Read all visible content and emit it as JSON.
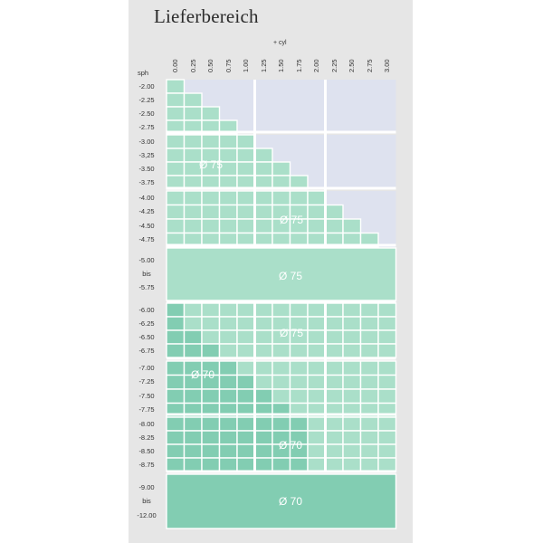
{
  "title": "Lieferbereich",
  "axis": {
    "cyl_label": "+ cyl",
    "sph_label": "sph"
  },
  "columns": [
    "0.00",
    "0.25",
    "0.50",
    "0.75",
    "1.00",
    "1.25",
    "1.50",
    "1.75",
    "2.00",
    "2.25",
    "2.50",
    "2.75",
    "3.00"
  ],
  "rows": [
    "-2.00",
    "-2.25",
    "-2.50",
    "-2.75",
    "-3.00",
    "-3,25",
    "-3.50",
    "-3.75",
    "-4.00",
    "-4.25",
    "-4.50",
    "-4.75",
    "-5.00",
    "bis",
    "-5.75",
    "-6.00",
    "-6.25",
    "-6.50",
    "-6.75",
    "-7.00",
    "-7.25",
    "-7.50",
    "-7.75",
    "-8.00",
    "-8.25",
    "-8.50",
    "-8.75",
    "-9.00",
    "bis",
    "-12.00"
  ],
  "regions": [
    {
      "label": "Ø 75"
    },
    {
      "label": "Ø 75"
    },
    {
      "label": "Ø 75"
    },
    {
      "label": "Ø 75"
    },
    {
      "label": "Ø 70"
    },
    {
      "label": "Ø 70"
    },
    {
      "label": "Ø 70"
    }
  ],
  "colors": {
    "panel": "#e6e6e6",
    "unavailable": "#dee2ef",
    "light_green": "#aadfc9",
    "dark_green": "#82cdb2",
    "separator": "#ffffff"
  }
}
